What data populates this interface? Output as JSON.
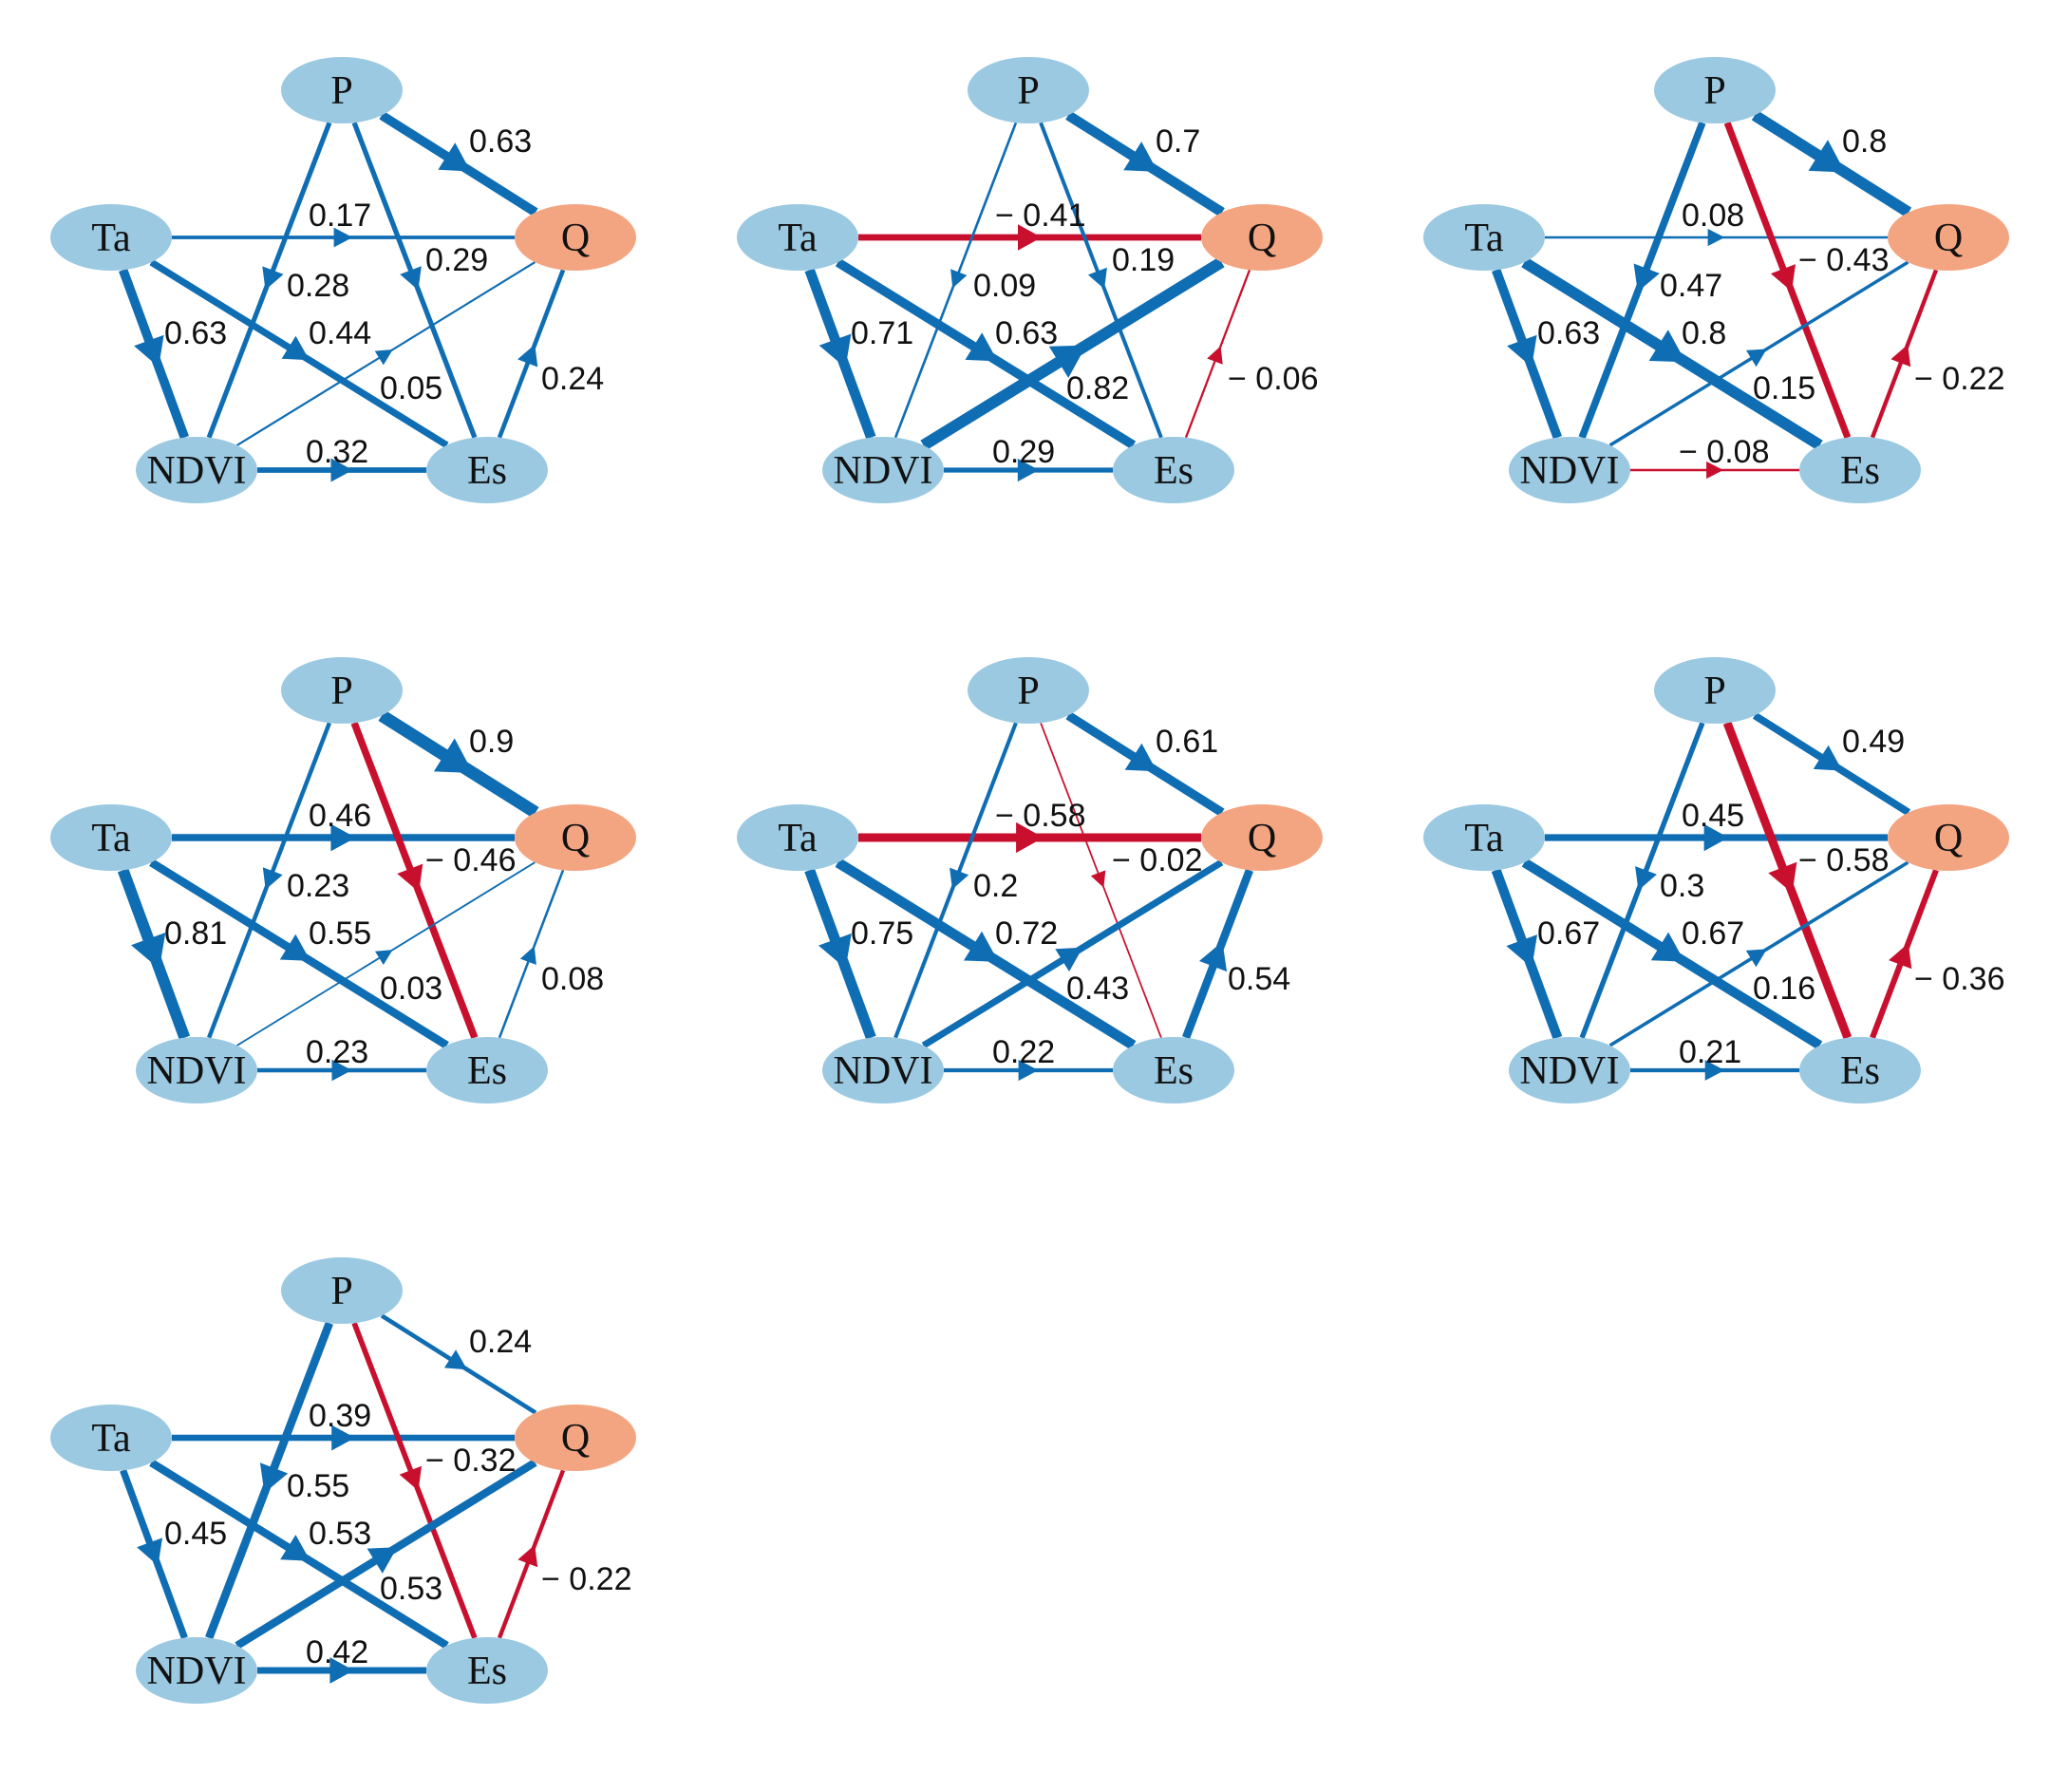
{
  "colors": {
    "positive": "#0f6db3",
    "negative": "#c8102e",
    "node_fill": "#9ac9e1",
    "target_fill": "#f3a582",
    "text": "#111111"
  },
  "nodes": [
    {
      "id": "P",
      "label": "P"
    },
    {
      "id": "Ta",
      "label": "Ta"
    },
    {
      "id": "Q",
      "label": "Q",
      "role": "target"
    },
    {
      "id": "NDVI",
      "label": "NDVI"
    },
    {
      "id": "Es",
      "label": "Es"
    }
  ],
  "panels": [
    {
      "edges": [
        {
          "from": "P",
          "to": "Q",
          "value": 0.63,
          "label": "0.63"
        },
        {
          "from": "Ta",
          "to": "Q",
          "value": 0.17,
          "label": "0.17"
        },
        {
          "from": "P",
          "to": "NDVI",
          "value": 0.28,
          "label": "0.28"
        },
        {
          "from": "P",
          "to": "Es",
          "value": 0.29,
          "label": "0.29"
        },
        {
          "from": "Ta",
          "to": "NDVI",
          "value": 0.63,
          "label": "0.63"
        },
        {
          "from": "Ta",
          "to": "Es",
          "value": 0.44,
          "label": "0.44"
        },
        {
          "from": "NDVI",
          "to": "Q",
          "value": 0.05,
          "label": "0.05"
        },
        {
          "from": "Es",
          "to": "Q",
          "value": 0.24,
          "label": "0.24"
        },
        {
          "from": "NDVI",
          "to": "Es",
          "value": 0.32,
          "label": "0.32"
        }
      ]
    },
    {
      "edges": [
        {
          "from": "P",
          "to": "Q",
          "value": 0.7,
          "label": "0.7"
        },
        {
          "from": "Ta",
          "to": "Q",
          "value": -0.41,
          "label": "− 0.41"
        },
        {
          "from": "P",
          "to": "NDVI",
          "value": 0.09,
          "label": "0.09"
        },
        {
          "from": "P",
          "to": "Es",
          "value": 0.19,
          "label": "0.19"
        },
        {
          "from": "Ta",
          "to": "NDVI",
          "value": 0.71,
          "label": "0.71"
        },
        {
          "from": "Ta",
          "to": "Es",
          "value": 0.63,
          "label": "0.63"
        },
        {
          "from": "NDVI",
          "to": "Q",
          "value": 0.82,
          "label": "0.82"
        },
        {
          "from": "Es",
          "to": "Q",
          "value": -0.06,
          "label": "− 0.06"
        },
        {
          "from": "NDVI",
          "to": "Es",
          "value": 0.29,
          "label": "0.29"
        }
      ]
    },
    {
      "edges": [
        {
          "from": "P",
          "to": "Q",
          "value": 0.8,
          "label": "0.8"
        },
        {
          "from": "Ta",
          "to": "Q",
          "value": 0.08,
          "label": "0.08"
        },
        {
          "from": "P",
          "to": "NDVI",
          "value": 0.47,
          "label": "0.47"
        },
        {
          "from": "P",
          "to": "Es",
          "value": -0.43,
          "label": "− 0.43"
        },
        {
          "from": "Ta",
          "to": "NDVI",
          "value": 0.63,
          "label": "0.63"
        },
        {
          "from": "Ta",
          "to": "Es",
          "value": 0.8,
          "label": "0.8"
        },
        {
          "from": "NDVI",
          "to": "Q",
          "value": 0.15,
          "label": "0.15"
        },
        {
          "from": "Es",
          "to": "Q",
          "value": -0.22,
          "label": "− 0.22"
        },
        {
          "from": "NDVI",
          "to": "Es",
          "value": -0.08,
          "label": "− 0.08"
        }
      ]
    },
    {
      "edges": [
        {
          "from": "P",
          "to": "Q",
          "value": 0.9,
          "label": "0.9"
        },
        {
          "from": "Ta",
          "to": "Q",
          "value": 0.46,
          "label": "0.46"
        },
        {
          "from": "P",
          "to": "NDVI",
          "value": 0.23,
          "label": "0.23"
        },
        {
          "from": "P",
          "to": "Es",
          "value": -0.46,
          "label": "− 0.46"
        },
        {
          "from": "Ta",
          "to": "NDVI",
          "value": 0.81,
          "label": "0.81"
        },
        {
          "from": "Ta",
          "to": "Es",
          "value": 0.55,
          "label": "0.55"
        },
        {
          "from": "NDVI",
          "to": "Q",
          "value": 0.03,
          "label": "0.03"
        },
        {
          "from": "Es",
          "to": "Q",
          "value": 0.08,
          "label": "0.08"
        },
        {
          "from": "NDVI",
          "to": "Es",
          "value": 0.23,
          "label": "0.23"
        }
      ]
    },
    {
      "edges": [
        {
          "from": "P",
          "to": "Q",
          "value": 0.61,
          "label": "0.61"
        },
        {
          "from": "Ta",
          "to": "Q",
          "value": -0.58,
          "label": "− 0.58"
        },
        {
          "from": "P",
          "to": "NDVI",
          "value": 0.2,
          "label": "0.2"
        },
        {
          "from": "P",
          "to": "Es",
          "value": -0.02,
          "label": "− 0.02"
        },
        {
          "from": "Ta",
          "to": "NDVI",
          "value": 0.75,
          "label": "0.75"
        },
        {
          "from": "Ta",
          "to": "Es",
          "value": 0.72,
          "label": "0.72"
        },
        {
          "from": "NDVI",
          "to": "Q",
          "value": 0.43,
          "label": "0.43"
        },
        {
          "from": "Es",
          "to": "Q",
          "value": 0.54,
          "label": "0.54"
        },
        {
          "from": "NDVI",
          "to": "Es",
          "value": 0.22,
          "label": "0.22"
        }
      ]
    },
    {
      "edges": [
        {
          "from": "P",
          "to": "Q",
          "value": 0.49,
          "label": "0.49"
        },
        {
          "from": "Ta",
          "to": "Q",
          "value": 0.45,
          "label": "0.45"
        },
        {
          "from": "P",
          "to": "NDVI",
          "value": 0.3,
          "label": "0.3"
        },
        {
          "from": "P",
          "to": "Es",
          "value": -0.58,
          "label": "− 0.58"
        },
        {
          "from": "Ta",
          "to": "NDVI",
          "value": 0.67,
          "label": "0.67"
        },
        {
          "from": "Ta",
          "to": "Es",
          "value": 0.67,
          "label": "0.67"
        },
        {
          "from": "NDVI",
          "to": "Q",
          "value": 0.16,
          "label": "0.16"
        },
        {
          "from": "Es",
          "to": "Q",
          "value": -0.36,
          "label": "− 0.36"
        },
        {
          "from": "NDVI",
          "to": "Es",
          "value": 0.21,
          "label": "0.21"
        }
      ]
    },
    {
      "edges": [
        {
          "from": "P",
          "to": "Q",
          "value": 0.24,
          "label": "0.24"
        },
        {
          "from": "Ta",
          "to": "Q",
          "value": 0.39,
          "label": "0.39"
        },
        {
          "from": "P",
          "to": "NDVI",
          "value": 0.55,
          "label": "0.55"
        },
        {
          "from": "P",
          "to": "Es",
          "value": -0.32,
          "label": "− 0.32"
        },
        {
          "from": "Ta",
          "to": "NDVI",
          "value": 0.45,
          "label": "0.45"
        },
        {
          "from": "Ta",
          "to": "Es",
          "value": 0.53,
          "label": "0.53"
        },
        {
          "from": "NDVI",
          "to": "Q",
          "value": 0.53,
          "label": "0.53"
        },
        {
          "from": "Es",
          "to": "Q",
          "value": -0.22,
          "label": "− 0.22"
        },
        {
          "from": "NDVI",
          "to": "Es",
          "value": 0.42,
          "label": "0.42"
        }
      ]
    }
  ]
}
